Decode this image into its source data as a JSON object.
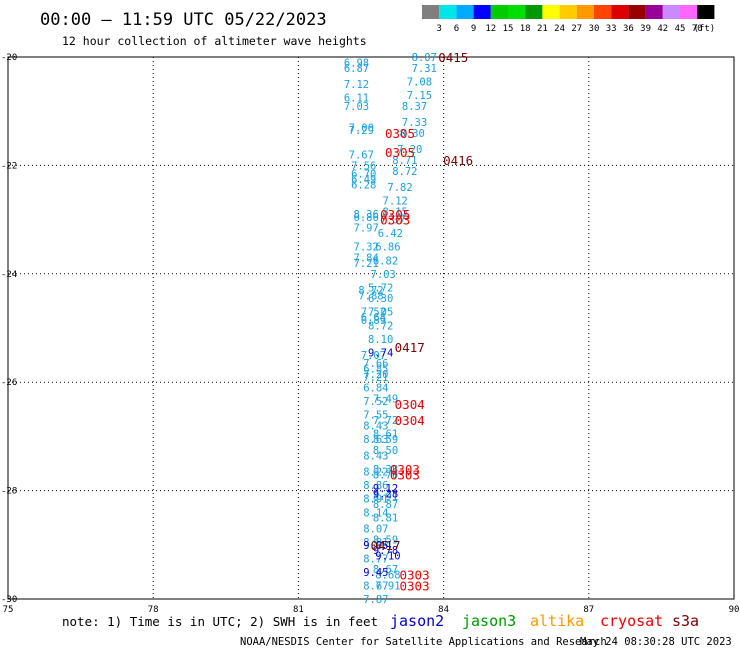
{
  "header": {
    "title": "00:00 – 11:59 UTC 05/22/2023",
    "subtitle": "12 hour collection of altimeter wave heights"
  },
  "colorbar": {
    "labels": [
      "3",
      "6",
      "9",
      "12",
      "15",
      "18",
      "21",
      "24",
      "27",
      "30",
      "33",
      "36",
      "39",
      "42",
      "45",
      "70"
    ],
    "unit": "(ft)",
    "colors": [
      "#7f7f7f",
      "#00e5e5",
      "#00aaff",
      "#0000ff",
      "#00cc00",
      "#00dd00",
      "#009900",
      "#ffff00",
      "#ffcc00",
      "#ff9900",
      "#ff4400",
      "#dd0000",
      "#990000",
      "#990099",
      "#cc88ff",
      "#ff66ff",
      "#000000"
    ]
  },
  "chart_data": {
    "type": "scatter",
    "xlim": [
      75,
      90
    ],
    "ylim": [
      -30,
      -20
    ],
    "x_ticks": [
      75,
      78,
      81,
      84,
      87,
      90
    ],
    "y_ticks": [
      -20,
      -22,
      -24,
      -26,
      -28,
      -30
    ],
    "x_tick_labels": [
      "75",
      "78",
      "81",
      "84",
      "87",
      "90"
    ],
    "y_tick_labels": [
      "-20",
      "-22",
      "-24",
      "-26",
      "-28",
      "-30"
    ],
    "series": [
      {
        "name": "jason3",
        "color": "#1aa0e0",
        "points": [
          {
            "x": 82.2,
            "y": -20.1,
            "label": "6.98"
          },
          {
            "x": 82.2,
            "y": -20.2,
            "label": "6.87"
          },
          {
            "x": 82.2,
            "y": -20.5,
            "label": "7.12"
          },
          {
            "x": 82.2,
            "y": -20.75,
            "label": "6.11"
          },
          {
            "x": 82.2,
            "y": -20.9,
            "label": "7.03"
          },
          {
            "x": 82.3,
            "y": -21.3,
            "label": "7.00"
          },
          {
            "x": 82.3,
            "y": -21.35,
            "label": "7.29"
          },
          {
            "x": 82.3,
            "y": -21.8,
            "label": "7.67"
          },
          {
            "x": 82.35,
            "y": -22.0,
            "label": "7.56"
          },
          {
            "x": 82.35,
            "y": -22.15,
            "label": "6.70"
          },
          {
            "x": 82.35,
            "y": -22.25,
            "label": "6.49"
          },
          {
            "x": 82.35,
            "y": -22.35,
            "label": "6.28"
          },
          {
            "x": 82.4,
            "y": -22.9,
            "label": "8.36"
          },
          {
            "x": 82.4,
            "y": -22.95,
            "label": "6.86"
          },
          {
            "x": 82.4,
            "y": -23.15,
            "label": "7.97"
          },
          {
            "x": 82.4,
            "y": -23.5,
            "label": "7.32"
          },
          {
            "x": 82.4,
            "y": -23.7,
            "label": "7.84"
          },
          {
            "x": 82.4,
            "y": -23.8,
            "label": "7.21"
          },
          {
            "x": 82.5,
            "y": -24.3,
            "label": "8.72"
          },
          {
            "x": 82.5,
            "y": -24.4,
            "label": "7.88"
          },
          {
            "x": 82.55,
            "y": -24.7,
            "label": "7.52"
          },
          {
            "x": 82.55,
            "y": -24.8,
            "label": "6.64"
          },
          {
            "x": 82.55,
            "y": -24.85,
            "label": "6.89"
          },
          {
            "x": 82.55,
            "y": -25.5,
            "label": "7.07"
          },
          {
            "x": 82.6,
            "y": -25.65,
            "label": "7.66"
          },
          {
            "x": 82.6,
            "y": -25.75,
            "label": "6.85"
          },
          {
            "x": 82.6,
            "y": -25.85,
            "label": "7.20"
          },
          {
            "x": 82.6,
            "y": -25.9,
            "label": "7.21"
          },
          {
            "x": 82.6,
            "y": -26.1,
            "label": "6.84"
          },
          {
            "x": 82.6,
            "y": -26.35,
            "label": "7.52"
          },
          {
            "x": 82.6,
            "y": -26.6,
            "label": "7.55"
          },
          {
            "x": 82.6,
            "y": -26.8,
            "label": "8.43"
          },
          {
            "x": 82.6,
            "y": -27.05,
            "label": "8.63"
          },
          {
            "x": 82.6,
            "y": -27.35,
            "label": "8.43"
          },
          {
            "x": 82.6,
            "y": -27.65,
            "label": "8.22"
          },
          {
            "x": 82.6,
            "y": -27.9,
            "label": "8.86"
          },
          {
            "x": 82.6,
            "y": -28.15,
            "label": "8.91"
          },
          {
            "x": 82.6,
            "y": -28.4,
            "label": "8.14"
          },
          {
            "x": 82.6,
            "y": -28.7,
            "label": "8.07"
          },
          {
            "x": 82.6,
            "y": -28.95,
            "label": "8.91"
          },
          {
            "x": 82.6,
            "y": -29.25,
            "label": "8.77"
          },
          {
            "x": 82.6,
            "y": -29.75,
            "label": "8.67"
          },
          {
            "x": 82.6,
            "y": -30.0,
            "label": "7.87"
          },
          {
            "x": 83.6,
            "y": -20.0,
            "label": "8.07"
          },
          {
            "x": 83.6,
            "y": -20.2,
            "label": "7.31"
          },
          {
            "x": 83.5,
            "y": -20.45,
            "label": "7.08"
          },
          {
            "x": 83.5,
            "y": -20.7,
            "label": "7.15"
          },
          {
            "x": 83.4,
            "y": -20.9,
            "label": "8.37"
          },
          {
            "x": 83.4,
            "y": -21.2,
            "label": "7.33"
          },
          {
            "x": 83.35,
            "y": -21.4,
            "label": "8.30"
          },
          {
            "x": 83.3,
            "y": -21.7,
            "label": "7.20"
          },
          {
            "x": 83.2,
            "y": -21.9,
            "label": "8.71"
          },
          {
            "x": 83.2,
            "y": -22.1,
            "label": "8.72"
          },
          {
            "x": 83.1,
            "y": -22.4,
            "label": "7.82"
          },
          {
            "x": 83.0,
            "y": -22.65,
            "label": "7.12"
          },
          {
            "x": 83.0,
            "y": -22.85,
            "label": "8.15"
          },
          {
            "x": 82.95,
            "y": -23.0,
            "label": "7.37"
          },
          {
            "x": 82.9,
            "y": -23.25,
            "label": "6.42"
          },
          {
            "x": 82.85,
            "y": -23.5,
            "label": "6.86"
          },
          {
            "x": 82.8,
            "y": -23.75,
            "label": "6.82"
          },
          {
            "x": 82.75,
            "y": -24.0,
            "label": "7.03"
          },
          {
            "x": 82.7,
            "y": -24.25,
            "label": "5.72"
          },
          {
            "x": 82.7,
            "y": -24.45,
            "label": "6.30"
          },
          {
            "x": 82.7,
            "y": -24.7,
            "label": "7.05"
          },
          {
            "x": 82.7,
            "y": -24.95,
            "label": "8.72"
          },
          {
            "x": 82.7,
            "y": -25.2,
            "label": "8.10"
          },
          {
            "x": 82.8,
            "y": -26.3,
            "label": "7.49"
          },
          {
            "x": 82.8,
            "y": -26.7,
            "label": "7.72"
          },
          {
            "x": 82.8,
            "y": -26.95,
            "label": "8.61"
          },
          {
            "x": 82.8,
            "y": -27.05,
            "label": "8.59"
          },
          {
            "x": 82.8,
            "y": -27.25,
            "label": "8.50"
          },
          {
            "x": 82.8,
            "y": -27.6,
            "label": "8.38"
          },
          {
            "x": 82.8,
            "y": -27.7,
            "label": "8.70"
          },
          {
            "x": 82.8,
            "y": -28.1,
            "label": "8.91"
          },
          {
            "x": 82.8,
            "y": -28.25,
            "label": "8.87"
          },
          {
            "x": 82.8,
            "y": -28.5,
            "label": "8.81"
          },
          {
            "x": 82.8,
            "y": -28.9,
            "label": "8.59"
          },
          {
            "x": 82.8,
            "y": -29.45,
            "label": "8.67"
          },
          {
            "x": 82.85,
            "y": -29.55,
            "label": "8.68"
          },
          {
            "x": 82.85,
            "y": -29.75,
            "label": "7.91"
          }
        ]
      },
      {
        "name": "jason2",
        "color": "#0000cc",
        "points": [
          {
            "x": 82.7,
            "y": -25.45,
            "label": "9.74"
          },
          {
            "x": 82.8,
            "y": -27.95,
            "label": "9.12"
          },
          {
            "x": 82.8,
            "y": -28.05,
            "label": "9.28"
          },
          {
            "x": 82.6,
            "y": -29.0,
            "label": "9.05"
          },
          {
            "x": 82.8,
            "y": -29.1,
            "label": "9.78"
          },
          {
            "x": 82.85,
            "y": -29.2,
            "label": "9.10"
          },
          {
            "x": 82.6,
            "y": -29.5,
            "label": "9.45"
          }
        ]
      }
    ],
    "revolutions": [
      {
        "x": 84.2,
        "y": -20.0,
        "label": "0415",
        "color": "#7a0000"
      },
      {
        "x": 83.1,
        "y": -21.4,
        "label": "0305",
        "color": "#ee0000"
      },
      {
        "x": 83.1,
        "y": -21.75,
        "label": "0305",
        "color": "#ee0000"
      },
      {
        "x": 84.3,
        "y": -21.9,
        "label": "0416",
        "color": "#7a0000"
      },
      {
        "x": 83.0,
        "y": -22.9,
        "label": "0305",
        "color": "#ee0000"
      },
      {
        "x": 83.0,
        "y": -23.0,
        "label": "0303",
        "color": "#ee0000"
      },
      {
        "x": 83.3,
        "y": -25.35,
        "label": "0417",
        "color": "#7a0000"
      },
      {
        "x": 83.3,
        "y": -26.4,
        "label": "0304",
        "color": "#ee0000"
      },
      {
        "x": 83.3,
        "y": -26.7,
        "label": "0304",
        "color": "#ee0000"
      },
      {
        "x": 83.2,
        "y": -27.6,
        "label": "0303",
        "color": "#ee0000"
      },
      {
        "x": 83.2,
        "y": -27.7,
        "label": "0303",
        "color": "#ee0000"
      },
      {
        "x": 82.8,
        "y": -29.0,
        "label": "0417",
        "color": "#7a0000"
      },
      {
        "x": 83.4,
        "y": -29.55,
        "label": "0303",
        "color": "#ee0000"
      },
      {
        "x": 83.4,
        "y": -29.75,
        "label": "0303",
        "color": "#ee0000"
      }
    ]
  },
  "footer": {
    "note": "note: 1) Time is in UTC; 2) SWH is in feet",
    "satellites": [
      {
        "name": "jason2",
        "color": "#0000cc"
      },
      {
        "name": "jason3",
        "color": "#009900"
      },
      {
        "name": "altika",
        "color": "#ff9900"
      },
      {
        "name": "cryosat",
        "color": "#ee0000"
      },
      {
        "name": "s3a",
        "color": "#7a0000"
      }
    ],
    "credit_left": "NOAA/NESDIS Center for Satellite Applications and Research",
    "credit_right": "May 24 08:30:28 UTC 2023"
  }
}
